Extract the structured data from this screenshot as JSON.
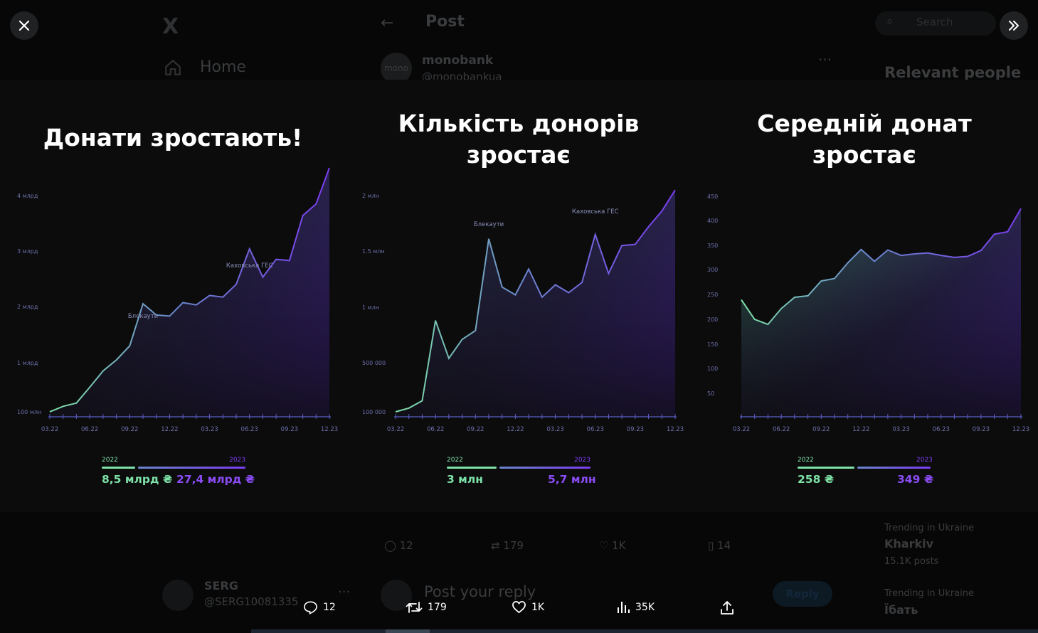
{
  "background": {
    "logo": "X",
    "nav_home": "Home",
    "back_icon": "←",
    "header_title": "Post",
    "author_avatar_text": "mono",
    "author_name": "monobank",
    "author_handle": "@monobankua",
    "search_placeholder": "Search",
    "relevant_people": "Relevant people",
    "stats": {
      "replies": "12",
      "reposts": "179",
      "likes": "1K",
      "bookmarks": "14"
    },
    "trending1_label": "Trending in Ukraine",
    "trending1_topic": "Kharkiv",
    "trending1_count": "15.1K posts",
    "trending2_label": "Trending in Ukraine",
    "trending2_topic": "Їбать",
    "reply_placeholder": "Post your reply",
    "reply_button": "Reply",
    "commenter_name": "SERG",
    "commenter_handle": "@SERG10081335"
  },
  "actions": {
    "replies": "12",
    "reposts": "179",
    "likes": "1K",
    "views": "35K"
  },
  "colors": {
    "green": "#7ee2a8",
    "purple": "#7b3cf0",
    "axis": "#5a5fc8"
  },
  "chart_data": [
    {
      "type": "area",
      "title": "Донати зростають!",
      "x_ticks": [
        "03.22",
        "06.22",
        "09.22",
        "12.22",
        "03.23",
        "06.23",
        "09.23",
        "12.23"
      ],
      "y_ticks": [
        {
          "label": "100 млн",
          "value": 100000000
        },
        {
          "label": "1 млрд",
          "value": 1000000000
        },
        {
          "label": "2 млрд",
          "value": 2000000000
        },
        {
          "label": "3 млрд",
          "value": 3000000000
        },
        {
          "label": "4 млрд",
          "value": 4000000000
        }
      ],
      "ylim": [
        100000000,
        4000000000
      ],
      "annotations": [
        {
          "text": "Блекаути",
          "index": 7
        },
        {
          "text": "Каховська ГЕС",
          "index": 15
        }
      ],
      "values": [
        100000000,
        200000000,
        260000000,
        550000000,
        850000000,
        1050000000,
        1300000000,
        2050000000,
        1850000000,
        1830000000,
        2070000000,
        2030000000,
        2200000000,
        2170000000,
        2400000000,
        3040000000,
        2530000000,
        2850000000,
        2830000000,
        3640000000,
        3850000000,
        4500000000
      ],
      "legend": {
        "year1": "2022",
        "year2": "2023",
        "value1": "8,5 млрд ₴",
        "value2": "27,4 млрд ₴"
      }
    },
    {
      "type": "area",
      "title": "Кількість донорів зростає",
      "x_ticks": [
        "03.22",
        "06.22",
        "09.22",
        "12.22",
        "03.23",
        "06.23",
        "09.23",
        "12.23"
      ],
      "y_ticks": [
        {
          "label": "100 000",
          "value": 100000
        },
        {
          "label": "500 000",
          "value": 500000
        },
        {
          "label": "1 млн",
          "value": 1000000
        },
        {
          "label": "1.5 млн",
          "value": 1500000
        },
        {
          "label": "2 млн",
          "value": 2000000
        }
      ],
      "ylim": [
        100000,
        2000000
      ],
      "annotations": [
        {
          "text": "Блекаути",
          "index": 7
        },
        {
          "text": "Каховська ГЕС",
          "index": 15
        }
      ],
      "values": [
        100000,
        130000,
        190000,
        880000,
        540000,
        710000,
        790000,
        1610000,
        1180000,
        1110000,
        1340000,
        1090000,
        1200000,
        1130000,
        1220000,
        1650000,
        1300000,
        1550000,
        1560000,
        1720000,
        1860000,
        2050000
      ],
      "legend": {
        "year1": "2022",
        "year2": "2023",
        "value1": "3 млн",
        "value2": "5,7 млн"
      }
    },
    {
      "type": "area",
      "title": "Середній донат зростає",
      "x_ticks": [
        "03.22",
        "06.22",
        "09.22",
        "12.22",
        "03.23",
        "06.23",
        "09.23",
        "12.23"
      ],
      "y_ticks": [
        {
          "label": "50",
          "value": 50
        },
        {
          "label": "100",
          "value": 100
        },
        {
          "label": "150",
          "value": 150
        },
        {
          "label": "200",
          "value": 200
        },
        {
          "label": "250",
          "value": 250
        },
        {
          "label": "300",
          "value": 300
        },
        {
          "label": "350",
          "value": 350
        },
        {
          "label": "400",
          "value": 400
        },
        {
          "label": "450",
          "value": 450
        }
      ],
      "ylim": [
        0,
        450
      ],
      "values": [
        240,
        200,
        190,
        222,
        245,
        248,
        278,
        283,
        315,
        342,
        318,
        341,
        330,
        333,
        335,
        330,
        326,
        328,
        340,
        373,
        378,
        425
      ],
      "legend": {
        "year1": "2022",
        "year2": "2023",
        "value1": "258 ₴",
        "value2": "349 ₴"
      }
    }
  ]
}
